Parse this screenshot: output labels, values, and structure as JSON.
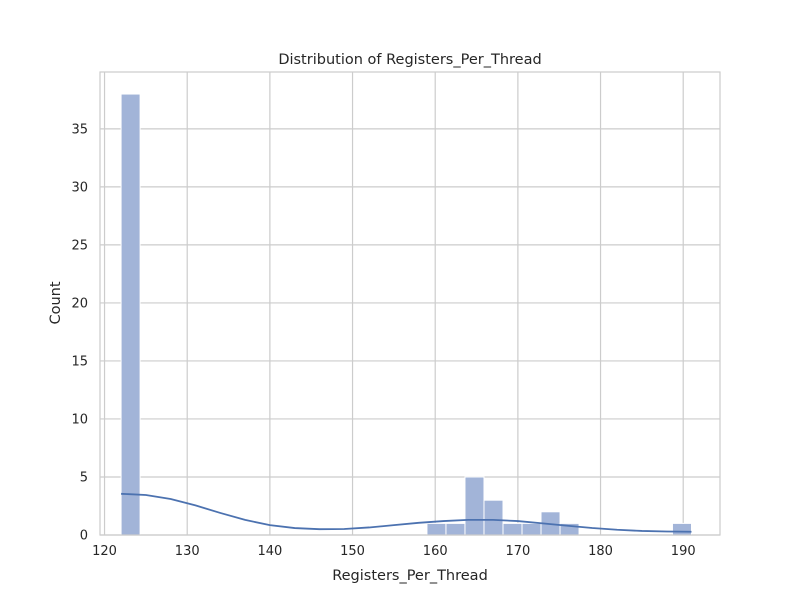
{
  "chart_data": {
    "type": "bar",
    "title": "Distribution of Registers_Per_Thread",
    "xlabel": "Registers_Per_Thread",
    "ylabel": "Count",
    "xlim": [
      119.45,
      194.45
    ],
    "ylim": [
      0,
      39.9
    ],
    "xticks": [
      120,
      130,
      140,
      150,
      160,
      170,
      180,
      190
    ],
    "yticks": [
      0,
      5,
      10,
      15,
      20,
      25,
      30,
      35
    ],
    "grid": true,
    "bins": [
      {
        "x0": 122.0,
        "x1": 124.3,
        "count": 38
      },
      {
        "x0": 159.0,
        "x1": 161.3,
        "count": 1
      },
      {
        "x0": 161.3,
        "x1": 163.6,
        "count": 1
      },
      {
        "x0": 163.6,
        "x1": 165.9,
        "count": 5
      },
      {
        "x0": 165.9,
        "x1": 168.2,
        "count": 3
      },
      {
        "x0": 168.2,
        "x1": 170.5,
        "count": 1
      },
      {
        "x0": 170.5,
        "x1": 172.8,
        "count": 1
      },
      {
        "x0": 172.8,
        "x1": 175.1,
        "count": 2
      },
      {
        "x0": 175.1,
        "x1": 177.4,
        "count": 1
      },
      {
        "x0": 188.7,
        "x1": 191.0,
        "count": 1
      }
    ],
    "kde": {
      "x": [
        122,
        125,
        128,
        131,
        134,
        137,
        140,
        143,
        146,
        149,
        152,
        155,
        158,
        161,
        164,
        167,
        170,
        173,
        176,
        179,
        182,
        185,
        188,
        191
      ],
      "y": [
        3.55,
        3.45,
        3.1,
        2.55,
        1.9,
        1.3,
        0.85,
        0.6,
        0.5,
        0.52,
        0.65,
        0.85,
        1.05,
        1.2,
        1.3,
        1.3,
        1.2,
        1.0,
        0.8,
        0.6,
        0.45,
        0.35,
        0.3,
        0.28
      ]
    },
    "colors": {
      "bar_fill": "#a2b4d8",
      "bar_edge": "#ffffff",
      "kde_line": "#4c72b0",
      "grid": "#cccccc",
      "axes_edge": "#cccccc"
    }
  }
}
